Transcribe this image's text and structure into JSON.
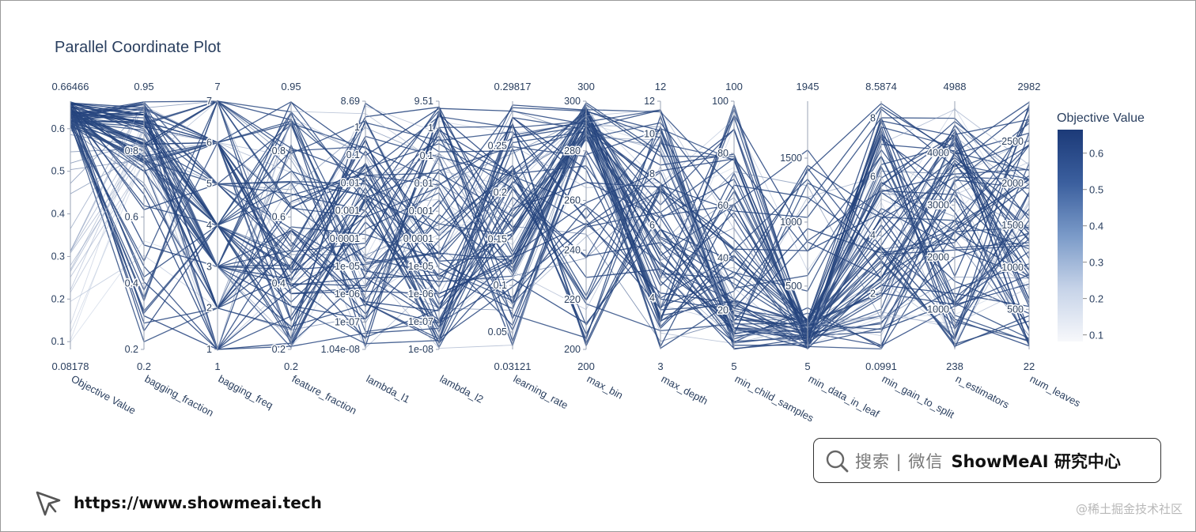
{
  "chart_data": {
    "type": "parallel_coordinates",
    "title": "Parallel Coordinate Plot",
    "n_lines": 95,
    "dimensions": [
      {
        "name": "Objective Value",
        "range": [
          0.08178,
          0.66466
        ],
        "range_labels": [
          "0.08178",
          "0.66466"
        ],
        "ticks": [
          "0.1",
          "0.2",
          "0.3",
          "0.4",
          "0.5",
          "0.6"
        ],
        "scale": "linear",
        "tick_vals": [
          0.1,
          0.2,
          0.3,
          0.4,
          0.5,
          0.6
        ]
      },
      {
        "name": "bagging_fraction",
        "range": [
          0.2,
          0.95
        ],
        "range_labels": [
          "0.2",
          "0.95"
        ],
        "ticks": [
          "0.2",
          "0.4",
          "0.6",
          "0.8"
        ],
        "scale": "linear",
        "tick_vals": [
          0.2,
          0.4,
          0.6,
          0.8
        ]
      },
      {
        "name": "bagging_freq",
        "range": [
          1,
          7
        ],
        "range_labels": [
          "1",
          "7"
        ],
        "ticks": [
          "1",
          "2",
          "3",
          "4",
          "5",
          "6",
          "7"
        ],
        "scale": "linear",
        "tick_vals": [
          1,
          2,
          3,
          4,
          5,
          6,
          7
        ]
      },
      {
        "name": "feature_fraction",
        "range": [
          0.2,
          0.95
        ],
        "range_labels": [
          "0.2",
          "0.95"
        ],
        "ticks": [
          "0.2",
          "0.4",
          "0.6",
          "0.8"
        ],
        "scale": "linear",
        "tick_vals": [
          0.2,
          0.4,
          0.6,
          0.8
        ]
      },
      {
        "name": "lambda_l1",
        "range": [
          1.04e-08,
          8.69
        ],
        "range_labels": [
          "",
          ""
        ],
        "ticks": [
          "1.04e-08",
          "1e-07",
          "1e-06",
          "1e-05",
          "0.0001",
          "0.001",
          "0.01",
          "0.1",
          "1",
          "8.69"
        ],
        "scale": "log",
        "tick_vals": [
          1.04e-08,
          1e-07,
          1e-06,
          1e-05,
          0.0001,
          0.001,
          0.01,
          0.1,
          1,
          8.69
        ]
      },
      {
        "name": "lambda_l2",
        "range": [
          1e-08,
          9.51
        ],
        "range_labels": [
          "",
          ""
        ],
        "ticks": [
          "1e-08",
          "1e-07",
          "1e-06",
          "1e-05",
          "0.0001",
          "0.001",
          "0.01",
          "0.1",
          "1",
          "9.51"
        ],
        "scale": "log",
        "tick_vals": [
          1e-08,
          1e-07,
          1e-06,
          1e-05,
          0.0001,
          0.001,
          0.01,
          0.1,
          1,
          9.51
        ]
      },
      {
        "name": "learning_rate",
        "range": [
          0.03121,
          0.29817
        ],
        "range_labels": [
          "0.03121",
          "0.29817"
        ],
        "ticks": [
          "0.05",
          "0.1",
          "0.15",
          "0.2",
          "0.25"
        ],
        "scale": "linear",
        "tick_vals": [
          0.05,
          0.1,
          0.15,
          0.2,
          0.25
        ]
      },
      {
        "name": "max_bin",
        "range": [
          200,
          300
        ],
        "range_labels": [
          "200",
          "300"
        ],
        "ticks": [
          "200",
          "220",
          "240",
          "260",
          "280",
          "300"
        ],
        "scale": "linear",
        "tick_vals": [
          200,
          220,
          240,
          260,
          280,
          300
        ]
      },
      {
        "name": "max_depth",
        "range": [
          3,
          12
        ],
        "range_labels": [
          "3",
          "12"
        ],
        "ticks": [
          "4",
          "6",
          "8",
          "10",
          "12"
        ],
        "scale": "log",
        "tick_vals": [
          4,
          6,
          8,
          10,
          12
        ]
      },
      {
        "name": "min_child_samples",
        "range": [
          5,
          100
        ],
        "range_labels": [
          "5",
          "100"
        ],
        "ticks": [
          "20",
          "40",
          "60",
          "80",
          "100"
        ],
        "scale": "linear",
        "tick_vals": [
          20,
          40,
          60,
          80,
          100
        ]
      },
      {
        "name": "min_data_in_leaf",
        "range": [
          5,
          1945
        ],
        "range_labels": [
          "5",
          "1945"
        ],
        "ticks": [
          "500",
          "1000",
          "1500"
        ],
        "scale": "linear",
        "tick_vals": [
          500,
          1000,
          1500
        ]
      },
      {
        "name": "min_gain_to_split",
        "range": [
          0.0991,
          8.5874
        ],
        "range_labels": [
          "0.0991",
          "8.5874"
        ],
        "ticks": [
          "2",
          "4",
          "6",
          "8"
        ],
        "scale": "linear",
        "tick_vals": [
          2,
          4,
          6,
          8
        ]
      },
      {
        "name": "n_estimators",
        "range": [
          238,
          4988
        ],
        "range_labels": [
          "238",
          "4988"
        ],
        "ticks": [
          "1000",
          "2000",
          "3000",
          "4000"
        ],
        "scale": "linear",
        "tick_vals": [
          1000,
          2000,
          3000,
          4000
        ]
      },
      {
        "name": "num_leaves",
        "range": [
          22,
          2982
        ],
        "range_labels": [
          "22",
          "2982"
        ],
        "ticks": [
          "500",
          "1000",
          "1500",
          "2000",
          "2500"
        ],
        "scale": "linear",
        "tick_vals": [
          500,
          1000,
          1500,
          2000,
          2500
        ]
      }
    ],
    "colorbar": {
      "title": "Objective Value",
      "ticks": [
        "0.1",
        "0.2",
        "0.3",
        "0.4",
        "0.5",
        "0.6"
      ],
      "tick_vals": [
        0.1,
        0.2,
        0.3,
        0.4,
        0.5,
        0.6
      ],
      "range": [
        0.08178,
        0.66466
      ],
      "colors": [
        "#f7f8fb",
        "#c6d3e8",
        "#7a9ac8",
        "#3b5f9e",
        "#1c3a78"
      ]
    },
    "line_color_low": "#c8d2e4",
    "line_color_high": "#1f3f7a"
  },
  "banner": {
    "search_label": "搜索 | 微信",
    "brand": "ShowMeAI 研究中心",
    "site": "https://www.showmeai.tech",
    "watermark": "@稀土掘金技术社区",
    "search_icon": "search-icon",
    "site_icon": "cursor-pointer-icon"
  }
}
